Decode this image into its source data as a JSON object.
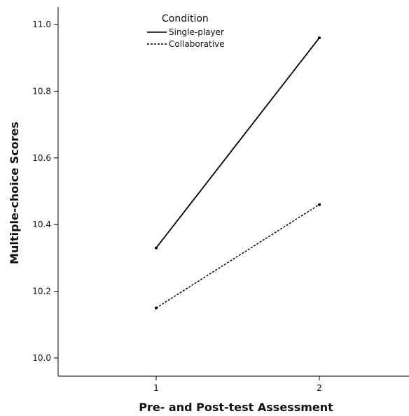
{
  "chart_data": {
    "type": "line",
    "xlabel": "Pre- and Post-test Assessment",
    "ylabel": "Multiple-choice Scores",
    "x": [
      "1",
      "2"
    ],
    "ylim": [
      10.0,
      11.0
    ],
    "yticks": [
      "10.0",
      "10.2",
      "10.4",
      "10.6",
      "10.8",
      "11.0"
    ],
    "legend": {
      "title": "Condition",
      "placement": "top-left"
    },
    "grid": false,
    "series": [
      {
        "name": "Single-player",
        "values": [
          10.33,
          10.96
        ],
        "style": "solid",
        "color": "#000000"
      },
      {
        "name": "Collaborative",
        "values": [
          10.15,
          10.46
        ],
        "style": "dashed",
        "color": "#000000"
      }
    ]
  }
}
